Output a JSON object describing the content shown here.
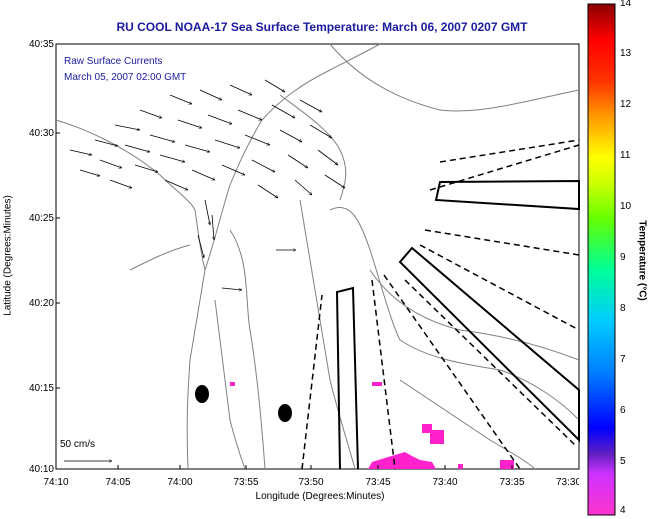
{
  "title": "RU COOL  NOAA-17  Sea Surface Temperature:  March 06, 2007 0207 GMT",
  "legend": {
    "line1": "Raw Surface Currents",
    "line2": "March 05, 2007 02:00 GMT",
    "scale": "50 cm/s"
  },
  "axes": {
    "xlabel": "Longitude (Degrees:Minutes)",
    "ylabel": "Latitude (Degrees:Minutes)",
    "xticks": [
      "74:10",
      "74:05",
      "74:00",
      "73:55",
      "73:50",
      "73:45",
      "73:40",
      "73:35",
      "73:30"
    ],
    "yticks": [
      "40:35",
      "40:30",
      "40:25",
      "40:20",
      "40:15",
      "40:10"
    ]
  },
  "colorbar": {
    "label": "Temperature (°C)",
    "ticks": [
      "14",
      "13",
      "12",
      "11",
      "10",
      "9",
      "8",
      "7",
      "6",
      "5",
      "4"
    ],
    "range": [
      4,
      14
    ]
  },
  "colors": {
    "title": "#1a1aa0",
    "coast": "#7a7a7a",
    "sst_patch": "#ff22cc"
  }
}
